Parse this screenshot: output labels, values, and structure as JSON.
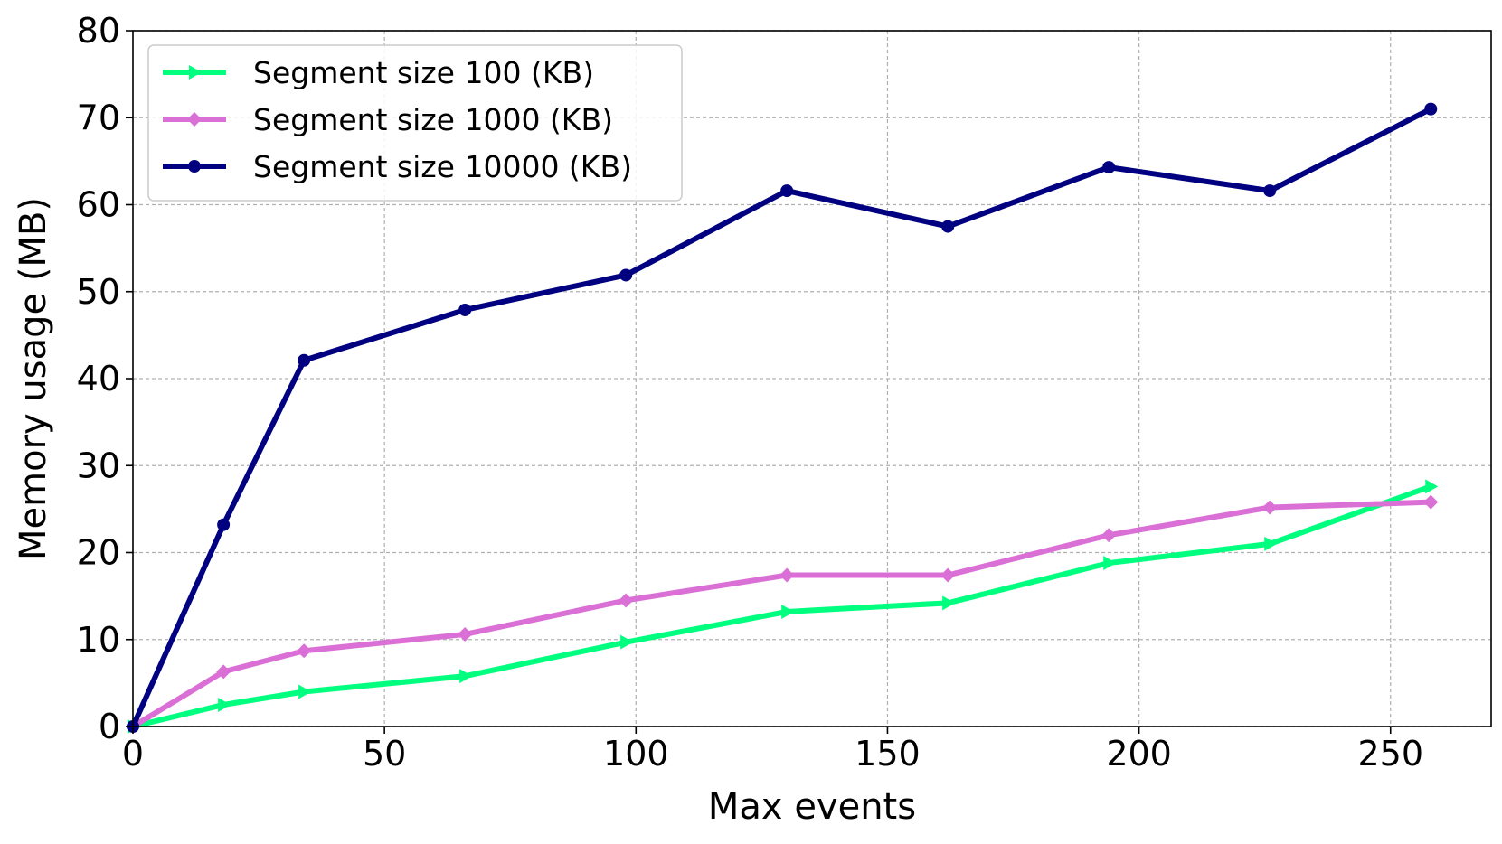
{
  "chart_data": {
    "type": "line",
    "xlabel": "Max events",
    "ylabel": "Memory usage (MB)",
    "xlim": [
      0,
      270
    ],
    "ylim": [
      0,
      80
    ],
    "xticks": [
      0,
      50,
      100,
      150,
      200,
      250
    ],
    "yticks": [
      0,
      10,
      20,
      30,
      40,
      50,
      60,
      70,
      80
    ],
    "grid": true,
    "legend_position": "upper-left",
    "x": [
      0,
      18,
      34,
      66,
      98,
      130,
      162,
      194,
      226,
      258
    ],
    "series": [
      {
        "name": "Segment size 100 (KB)",
        "color": "#00ff7f",
        "marker": "triangle-right",
        "values": [
          0,
          2.5,
          4.0,
          5.8,
          9.7,
          13.2,
          14.2,
          18.8,
          21.0,
          27.6
        ]
      },
      {
        "name": "Segment size 1000 (KB)",
        "color": "#da70d6",
        "marker": "diamond",
        "values": [
          0,
          6.3,
          8.7,
          10.6,
          14.5,
          17.4,
          17.4,
          22.0,
          25.2,
          25.8
        ]
      },
      {
        "name": "Segment size 10000 (KB)",
        "color": "#000080",
        "marker": "circle",
        "values": [
          0,
          23.2,
          42.1,
          47.9,
          51.9,
          61.6,
          57.5,
          64.3,
          61.6,
          71.0
        ]
      }
    ]
  }
}
